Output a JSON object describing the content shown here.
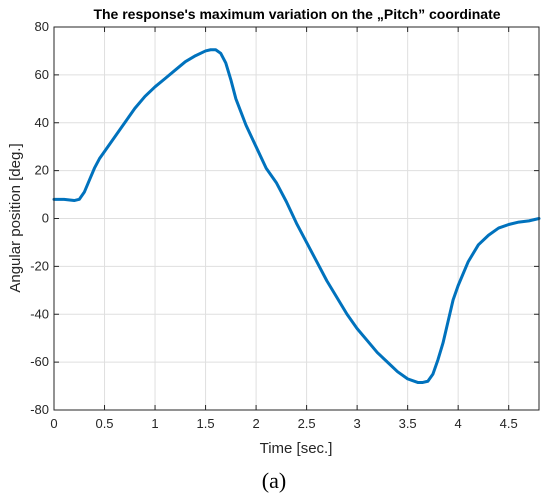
{
  "chart_data": {
    "type": "line",
    "title": "The response's maximum variation on the „Pitch” coordinate",
    "xlabel": "Time [sec.]",
    "ylabel": "Angular position [deg.]",
    "xlim": [
      0,
      4.8
    ],
    "ylim": [
      -80,
      80
    ],
    "xticks": [
      0,
      0.5,
      1,
      1.5,
      2,
      2.5,
      3,
      3.5,
      4,
      4.5
    ],
    "yticks": [
      -80,
      -60,
      -40,
      -20,
      0,
      20,
      40,
      60,
      80
    ],
    "xtick_labels": [
      "0",
      "0.5",
      "1",
      "1.5",
      "2",
      "2.5",
      "3",
      "3.5",
      "4",
      "4.5"
    ],
    "ytick_labels": [
      "-80",
      "-60",
      "-40",
      "-20",
      "0",
      "20",
      "40",
      "60",
      "80"
    ],
    "grid": true,
    "line_color": "#0072bd",
    "series": [
      {
        "x": [
          0,
          0.1,
          0.2,
          0.25,
          0.3,
          0.35,
          0.4,
          0.45,
          0.5,
          0.6,
          0.7,
          0.8,
          0.9,
          1.0,
          1.1,
          1.2,
          1.3,
          1.4,
          1.5,
          1.55,
          1.6,
          1.65,
          1.7,
          1.75,
          1.8,
          1.9,
          2.0,
          2.1,
          2.2,
          2.3,
          2.4,
          2.5,
          2.6,
          2.7,
          2.8,
          2.9,
          3.0,
          3.1,
          3.2,
          3.3,
          3.4,
          3.5,
          3.6,
          3.65,
          3.7,
          3.75,
          3.8,
          3.85,
          3.9,
          3.95,
          4.0,
          4.1,
          4.2,
          4.3,
          4.4,
          4.5,
          4.6,
          4.7,
          4.8
        ],
        "y": [
          8,
          8,
          7.5,
          8,
          11,
          16,
          21,
          25,
          28,
          34,
          40,
          46,
          51,
          55,
          58.5,
          62,
          65.5,
          68,
          70,
          70.5,
          70.5,
          69,
          65,
          58,
          50,
          39,
          30,
          21,
          15,
          7,
          -2,
          -10,
          -18,
          -26,
          -33,
          -40,
          -46,
          -51,
          -56,
          -60,
          -64,
          -67,
          -68.5,
          -68.5,
          -68,
          -65,
          -59,
          -52,
          -43,
          -34,
          -28,
          -18,
          -11,
          -7,
          -4,
          -2.5,
          -1.5,
          -1,
          0
        ]
      }
    ],
    "caption": "(a)"
  }
}
